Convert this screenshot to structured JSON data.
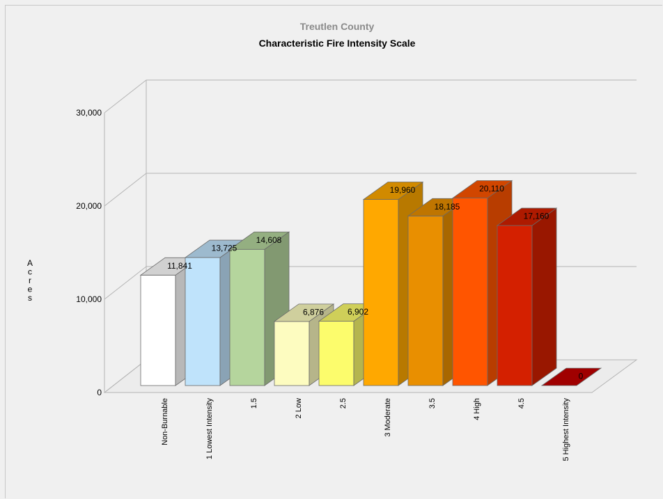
{
  "chart_data": {
    "type": "bar",
    "title": "Treutlen County",
    "subtitle": "Characteristic Fire Intensity Scale",
    "ylabel": "Acres",
    "xlabel": "",
    "ylim": [
      0,
      30000
    ],
    "yticks": [
      0,
      10000,
      20000,
      30000
    ],
    "ytick_labels": [
      "0",
      "10,000",
      "20,000",
      "30,000"
    ],
    "grid": true,
    "legend": "none",
    "categories": [
      "Non-Burnable",
      "1 Lowest Intensity",
      "1.5",
      "2 Low",
      "2.5",
      "3 Moderate",
      "3.5",
      "4 High",
      "4.5",
      "5 Highest Intensity"
    ],
    "values": [
      11841,
      13725,
      14608,
      6876,
      6902,
      19960,
      18185,
      20110,
      17160,
      0
    ],
    "value_labels": [
      "11,841",
      "13,725",
      "14,608",
      "6,876",
      "6,902",
      "19,960",
      "18,185",
      "20,110",
      "17,160",
      "0"
    ],
    "bar_colors": [
      "#ffffff",
      "#bfe3fb",
      "#b5d59d",
      "#fdfcc0",
      "#fcfc6c",
      "#ffa800",
      "#e98f00",
      "#ff5500",
      "#d42000",
      "#a00000"
    ]
  }
}
